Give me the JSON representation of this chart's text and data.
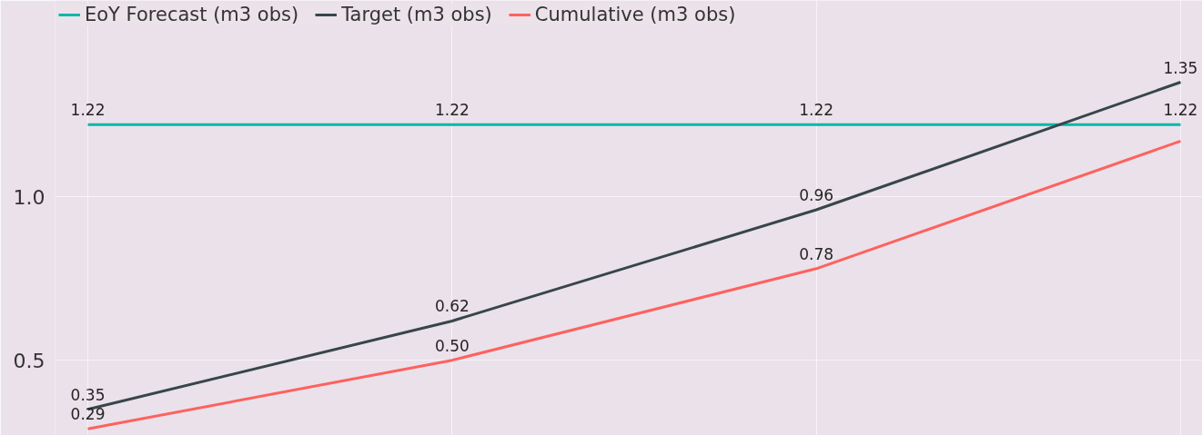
{
  "chart_data": {
    "type": "line",
    "categories": [
      null,
      null,
      null,
      null
    ],
    "series": [
      {
        "name": "EoY Forecast (m3 obs)",
        "color": "#01b8aa",
        "values": [
          1.22,
          1.22,
          1.22,
          1.22
        ],
        "value_labels": [
          "1.22",
          "1.22",
          "1.22",
          "1.22"
        ]
      },
      {
        "name": "Target (m3 obs)",
        "color": "#374649",
        "values": [
          0.35,
          0.62,
          0.96,
          1.35
        ],
        "value_labels": [
          "0.35",
          "0.62",
          "0.96",
          "1.35"
        ]
      },
      {
        "name": "Cumulative (m3 obs)",
        "color": "#fd625e",
        "values": [
          0.29,
          0.5,
          0.78,
          1.17
        ],
        "value_labels": [
          "0.29",
          "0.50",
          "0.78",
          null
        ]
      }
    ],
    "ylim": [
      0.27,
      1.6
    ],
    "yticks": [
      {
        "value": 0.5,
        "label": "0.5"
      },
      {
        "value": 1.0,
        "label": "1.0"
      }
    ],
    "grid": true,
    "legend": "top left",
    "tick_labels": "y",
    "marker": "none",
    "line_style": "solid"
  }
}
